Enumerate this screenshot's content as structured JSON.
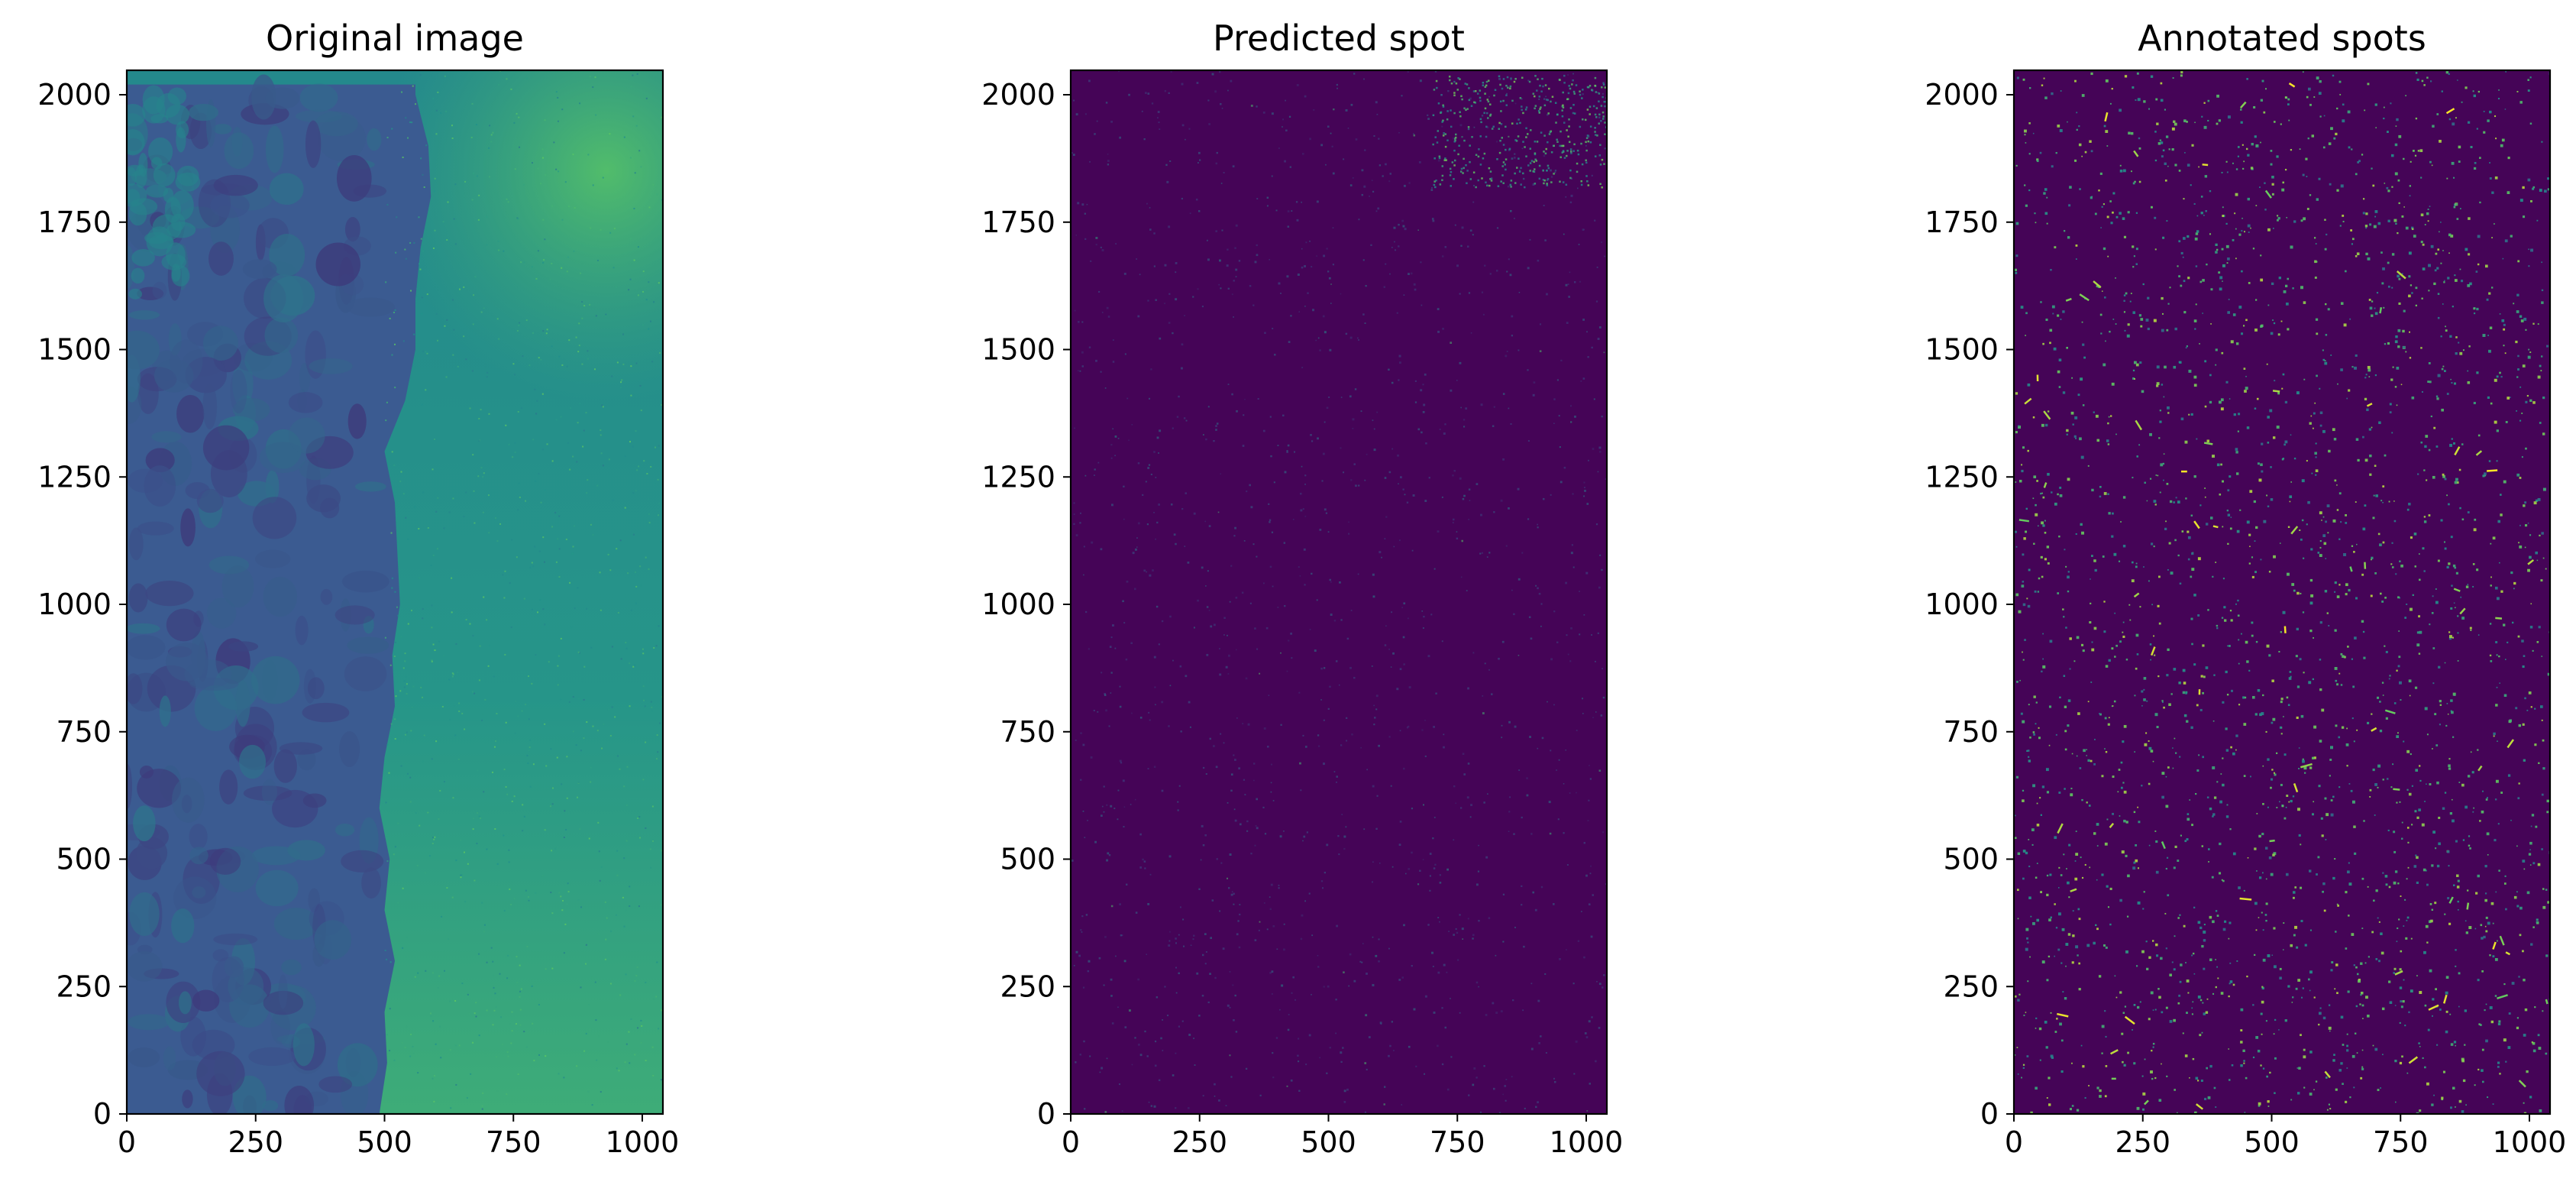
{
  "chart_data": [
    {
      "type": "heatmap",
      "title": "Original image",
      "colormap": "viridis",
      "xlabel": "",
      "ylabel": "",
      "image_extent": {
        "x": [
          0,
          1040
        ],
        "y": [
          0,
          2048
        ]
      },
      "xlim": [
        0,
        1040
      ],
      "ylim": [
        2048,
        0
      ],
      "xticks": [
        0,
        250,
        500,
        750,
        1000
      ],
      "yticks": [
        0,
        250,
        500,
        750,
        1000,
        1250,
        1500,
        1750,
        2000
      ],
      "grid": false,
      "content": "smoke-like darker plume (~0.25 of scale) covering x 0–500 on top of a brighter teal background (~0.5) that grows to yellow-green (~0.7) toward the bottom right"
    },
    {
      "type": "heatmap",
      "title": "Predicted spot",
      "colormap": "viridis",
      "xlabel": "",
      "ylabel": "",
      "image_extent": {
        "x": [
          0,
          1040
        ],
        "y": [
          0,
          2048
        ]
      },
      "xlim": [
        0,
        1040
      ],
      "ylim": [
        2048,
        0
      ],
      "xticks": [
        0,
        250,
        500,
        750,
        1000
      ],
      "yticks": [
        0,
        250,
        500,
        750,
        1000,
        1250,
        1500,
        1750,
        2000
      ],
      "grid": false,
      "content": "dark purple background with faint sparse spots; denser bright cluster near x 750–1000, y 1850–2000"
    },
    {
      "type": "heatmap",
      "title": "Annotated spots",
      "colormap": "viridis",
      "xlabel": "",
      "ylabel": "",
      "image_extent": {
        "x": [
          0,
          1040
        ],
        "y": [
          0,
          2048
        ]
      },
      "xlim": [
        0,
        1040
      ],
      "ylim": [
        2048,
        0
      ],
      "xticks": [
        0,
        250,
        500,
        750,
        1000
      ],
      "yticks": [
        0,
        250,
        500,
        750,
        1000,
        1250,
        1500,
        1750,
        2000
      ],
      "grid": false,
      "content": "dark purple background with many small bright teal/green/yellow spots scattered uniformly"
    }
  ],
  "colors": {
    "viridis_dark": "#440154",
    "viridis_bg": "#450457",
    "viridis_teal": "#21918c",
    "viridis_green": "#5ec962",
    "viridis_yellow": "#fde725",
    "plume": "#3b5b91"
  }
}
